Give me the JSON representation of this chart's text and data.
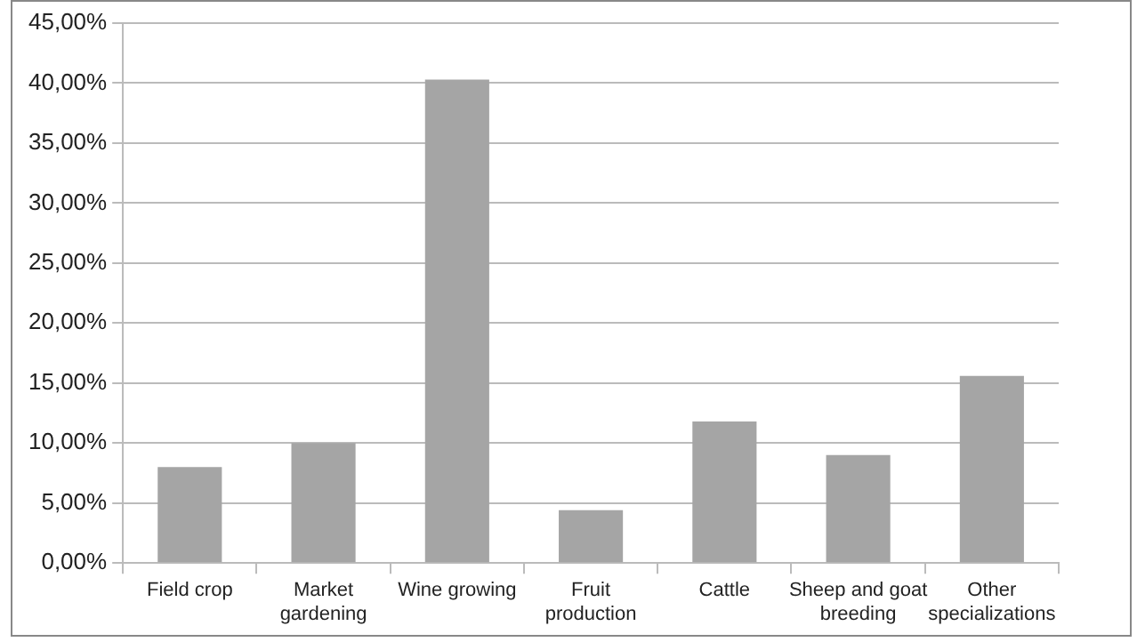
{
  "chart_data": {
    "type": "bar",
    "categories": [
      "Field crop",
      "Market gardening",
      "Wine growing",
      "Fruit production",
      "Cattle",
      "Sheep and goat breeding",
      "Other specializations"
    ],
    "values": [
      8.0,
      10.0,
      40.3,
      4.4,
      11.8,
      9.0,
      15.6
    ],
    "color": "#a5a5a5",
    "ylim": [
      0,
      45
    ],
    "yticks": [
      {
        "value": 0,
        "label": "0,00%"
      },
      {
        "value": 5,
        "label": "5,00%"
      },
      {
        "value": 10,
        "label": "10,00%"
      },
      {
        "value": 15,
        "label": "15,00%"
      },
      {
        "value": 20,
        "label": "20,00%"
      },
      {
        "value": 25,
        "label": "25,00%"
      },
      {
        "value": 30,
        "label": "30,00%"
      },
      {
        "value": 35,
        "label": "35,00%"
      },
      {
        "value": 40,
        "label": "40,00%"
      },
      {
        "value": 45,
        "label": "45,00%"
      }
    ],
    "grid": "y",
    "legend": false
  }
}
